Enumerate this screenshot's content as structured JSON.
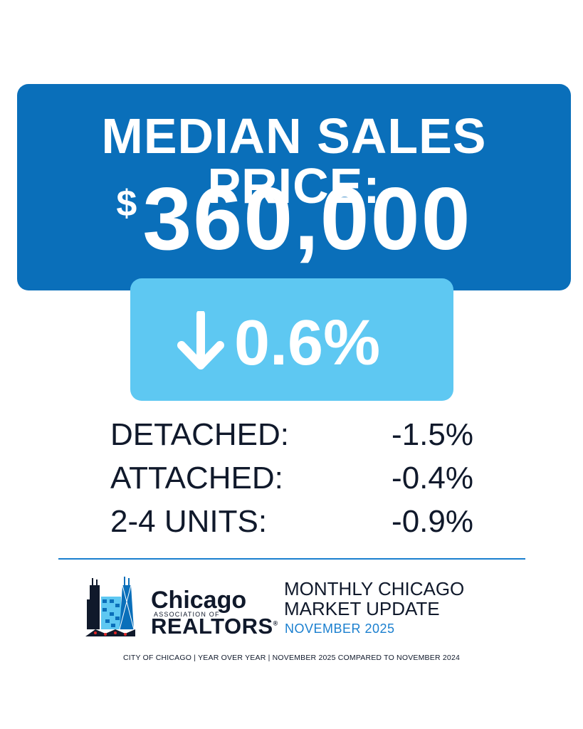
{
  "header": {
    "title": "MEDIAN SALES PRICE:",
    "currency": "$",
    "price": "360,000"
  },
  "change": {
    "direction_icon": "arrow-down-icon",
    "value": "0.6%"
  },
  "breakdown": [
    {
      "label": "DETACHED:",
      "value": "-1.5%"
    },
    {
      "label": "ATTACHED:",
      "value": "-0.4%"
    },
    {
      "label": "2-4 UNITS:",
      "value": "-0.9%"
    }
  ],
  "logo": {
    "chicago": "Chicago",
    "association": "ASSOCIATION OF",
    "realtors": "REALTORS"
  },
  "update": {
    "line1": "MONTHLY CHICAGO",
    "line2": "MARKET UPDATE",
    "date": "NOVEMBER 2025"
  },
  "footnote": "CITY OF CHICAGO | YEAR OVER YEAR | NOVEMBER 2025 COMPARED TO NOVEMBER 2024",
  "colors": {
    "primary_blue": "#0a6fba",
    "light_blue": "#5ec8f2",
    "navy": "#10192b",
    "accent_blue": "#1a7fcf"
  }
}
